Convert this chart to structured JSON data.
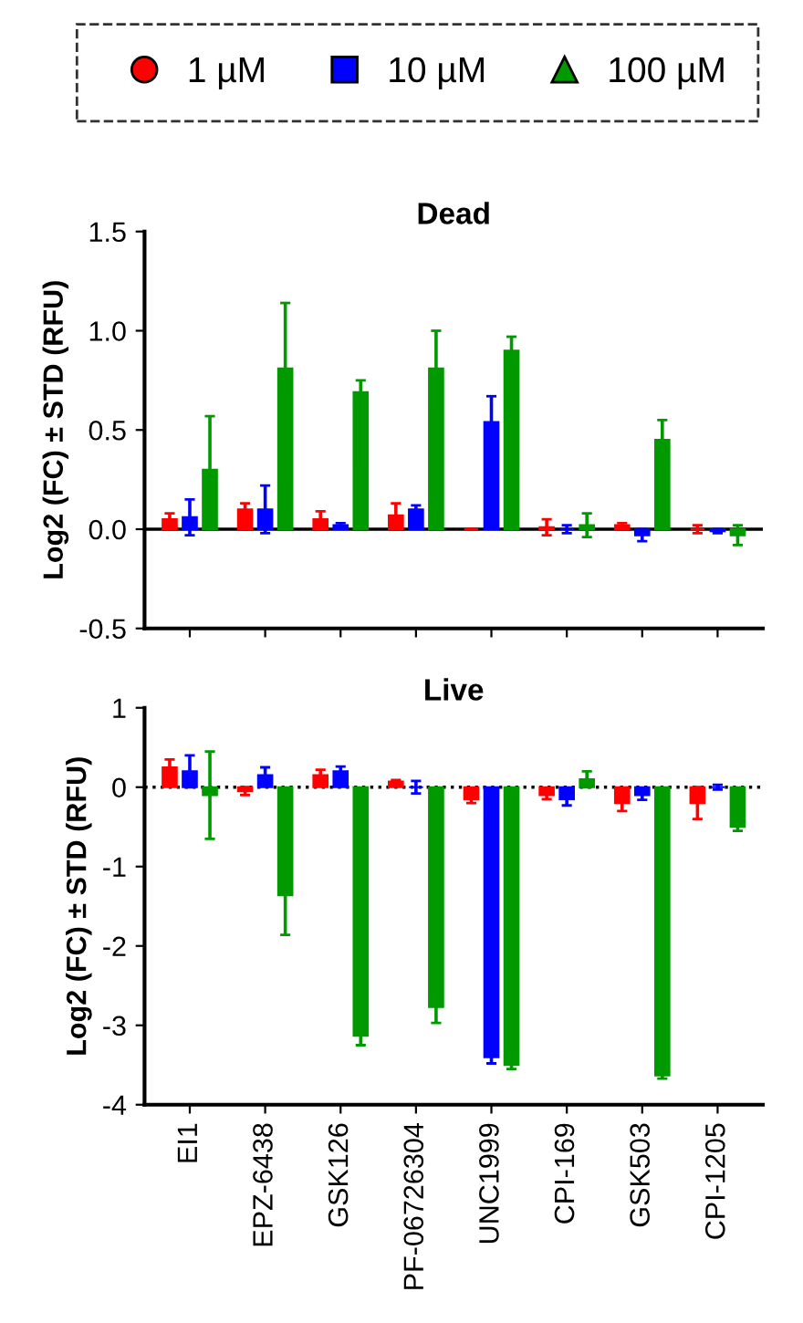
{
  "chart_data": [
    {
      "type": "bar",
      "title": "Dead",
      "ylabel": "Log2 (FC) ± STD (RFU)",
      "categories": [
        null,
        null,
        null,
        null,
        null,
        null,
        null,
        null
      ],
      "tick_labels": "y",
      "ylim": [
        -0.5,
        1.5
      ],
      "yticks": [
        -0.5,
        {
          "value": 0,
          "label": "0.0"
        },
        0.5,
        {
          "value": 1,
          "label": "1.0"
        },
        1.5
      ],
      "legend": "top",
      "grid": false,
      "series": [
        {
          "name": "1 µM",
          "color": "#ff0000",
          "marker": "circle",
          "values": [
            0.05,
            0.1,
            0.05,
            0.07,
            0.0,
            0.01,
            0.02,
            0.0
          ],
          "errors": [
            0.03,
            0.03,
            0.04,
            0.06,
            0.0,
            0.04,
            0.01,
            0.02
          ]
        },
        {
          "name": "10 µM",
          "color": "#0000ff",
          "marker": "square",
          "values": [
            0.06,
            0.1,
            0.02,
            0.1,
            0.54,
            0.0,
            -0.03,
            -0.01
          ],
          "errors": [
            0.09,
            0.12,
            0.01,
            0.02,
            0.13,
            0.02,
            0.03,
            0.01
          ]
        },
        {
          "name": "100 µM",
          "color": "#009900",
          "marker": "triangle",
          "values": [
            0.3,
            0.81,
            0.69,
            0.81,
            0.9,
            0.02,
            0.45,
            -0.03
          ],
          "errors": [
            0.27,
            0.33,
            0.06,
            0.19,
            0.07,
            0.06,
            0.1,
            0.05
          ]
        }
      ],
      "ref_lines": [
        {
          "axis": "y",
          "value": 0,
          "line_style": "solid",
          "color": "#000000"
        }
      ]
    },
    {
      "type": "bar",
      "title": "Live",
      "ylabel": "Log2 (FC) ± STD (RFU)",
      "categories": [
        "EI1",
        "EPZ-6438",
        "GSK126",
        "PF-06726304",
        "UNC1999",
        "CPI-169",
        "GSK503",
        "CPI-1205"
      ],
      "ylim": [
        -4,
        1
      ],
      "yticks": [
        -4,
        -3,
        -2,
        -1,
        0,
        1
      ],
      "grid": false,
      "series": [
        {
          "color": "#ff0000",
          "marker": "circle",
          "values": [
            0.25,
            -0.05,
            0.15,
            0.07,
            -0.15,
            -0.1,
            -0.2,
            -0.2
          ],
          "errors": [
            0.1,
            0.05,
            0.07,
            0.02,
            0.05,
            0.05,
            0.1,
            0.2
          ]
        },
        {
          "color": "#0000ff",
          "marker": "square",
          "values": [
            0.2,
            0.15,
            0.2,
            0.0,
            -3.4,
            -0.15,
            -0.1,
            0.0
          ],
          "errors": [
            0.2,
            0.1,
            0.06,
            0.08,
            0.08,
            0.08,
            0.06,
            0.03
          ]
        },
        {
          "color": "#009900",
          "marker": "triangle",
          "values": [
            -0.1,
            -1.36,
            -3.13,
            -2.77,
            -3.5,
            0.1,
            -3.63,
            -0.5
          ],
          "errors": [
            0.55,
            0.5,
            0.12,
            0.2,
            0.05,
            0.1,
            0.04,
            0.05
          ]
        }
      ],
      "ref_lines": [
        {
          "axis": "y",
          "value": 0,
          "line_style": "dotted",
          "color": "#000000"
        }
      ]
    }
  ]
}
